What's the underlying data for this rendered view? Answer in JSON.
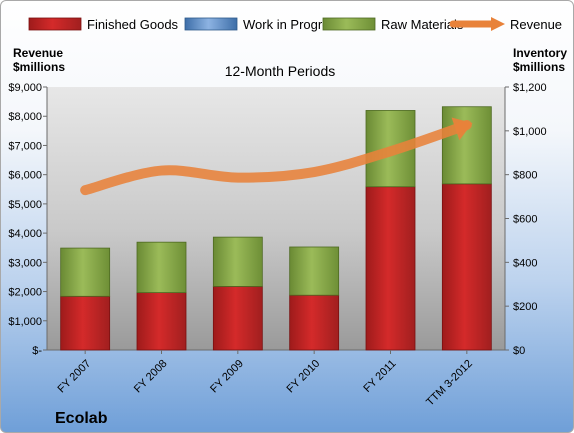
{
  "chart_data": {
    "type": "bar",
    "stacked": true,
    "title": "12-Month Periods",
    "company": "Ecolab",
    "categories": [
      "FY 2007",
      "FY 2008",
      "FY 2009",
      "FY 2010",
      "FY 2011",
      "TTM 3-2012"
    ],
    "series": [
      {
        "name": "Finished Goods",
        "type": "bar",
        "axis": "right",
        "color": "#c00000",
        "values": [
          245,
          262,
          290,
          250,
          745,
          758
        ]
      },
      {
        "name": "Work in Progress",
        "type": "bar",
        "axis": "right",
        "color": "#4f81bd",
        "values": [
          0,
          0,
          0,
          0,
          0,
          0
        ]
      },
      {
        "name": "Raw Materials",
        "type": "bar",
        "axis": "right",
        "color": "#76923c",
        "values": [
          220,
          230,
          225,
          220,
          348,
          352
        ]
      },
      {
        "name": "Revenue",
        "type": "line",
        "axis": "left",
        "color": "#e46c0a",
        "values": [
          5470,
          6140,
          5900,
          6090,
          6800,
          7700
        ]
      }
    ],
    "y_left": {
      "label_line1": "Revenue",
      "label_line2": "$millions",
      "ylim": [
        0,
        9000
      ],
      "ticks": [
        "$-",
        "$1,000",
        "$2,000",
        "$3,000",
        "$4,000",
        "$5,000",
        "$6,000",
        "$7,000",
        "$8,000",
        "$9,000"
      ]
    },
    "y_right": {
      "label_line1": "Inventory",
      "label_line2": "$millions",
      "ylim": [
        0,
        1200
      ],
      "ticks": [
        "$0",
        "$200",
        "$400",
        "$600",
        "$800",
        "$1,000",
        "$1,200"
      ]
    },
    "grid": false,
    "legend_position": "top"
  }
}
